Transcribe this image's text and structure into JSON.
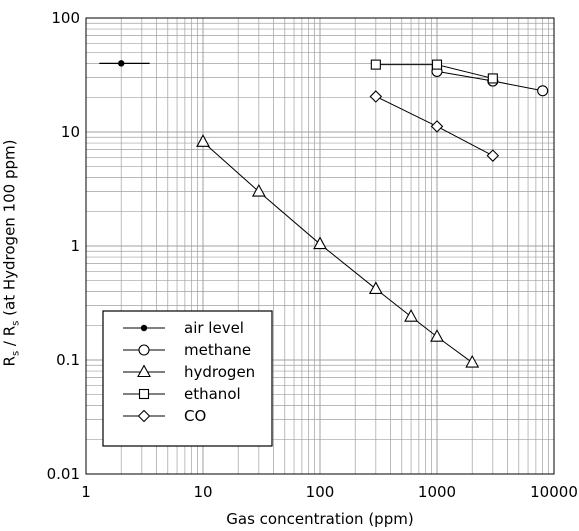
{
  "chart_data": {
    "type": "scatter",
    "xscale": "log",
    "yscale": "log",
    "xlim": [
      1,
      10000
    ],
    "ylim": [
      0.01,
      100
    ],
    "xlabel": "Gas concentration (ppm)",
    "ylabel": {
      "pre": "R",
      "sub1": "s",
      "mid": " / R",
      "sub2": "s",
      "post": " (at Hydrogen 100 ppm)"
    },
    "x_ticks": [
      {
        "value": 1,
        "label": "1"
      },
      {
        "value": 10,
        "label": "10"
      },
      {
        "value": 100,
        "label": "100"
      },
      {
        "value": 1000,
        "label": "1000"
      },
      {
        "value": 10000,
        "label": "10000"
      }
    ],
    "y_ticks": [
      {
        "value": 0.01,
        "label": "0.01"
      },
      {
        "value": 0.1,
        "label": "0.1"
      },
      {
        "value": 1,
        "label": "1"
      },
      {
        "value": 10,
        "label": "10"
      },
      {
        "value": 100,
        "label": "100"
      }
    ],
    "grid": true,
    "legend_position": "bottom-left",
    "air_level": {
      "name": "air level",
      "x": 2,
      "y": 40,
      "xerr": [
        1.3,
        3.5
      ]
    },
    "series": [
      {
        "name": "methane",
        "marker": "circle",
        "x": [
          1000,
          3000,
          8000
        ],
        "y": [
          34,
          28,
          23
        ]
      },
      {
        "name": "hydrogen",
        "marker": "triangle",
        "x": [
          10,
          30,
          100,
          300,
          600,
          1000,
          2000
        ],
        "y": [
          8.2,
          3.0,
          1.04,
          0.42,
          0.24,
          0.16,
          0.095
        ]
      },
      {
        "name": "ethanol",
        "marker": "square",
        "x": [
          300,
          1000,
          3000
        ],
        "y": [
          39,
          39,
          29.5
        ]
      },
      {
        "name": "CO",
        "marker": "diamond",
        "x": [
          300,
          1000,
          3000
        ],
        "y": [
          20.5,
          11.2,
          6.2
        ]
      }
    ]
  }
}
